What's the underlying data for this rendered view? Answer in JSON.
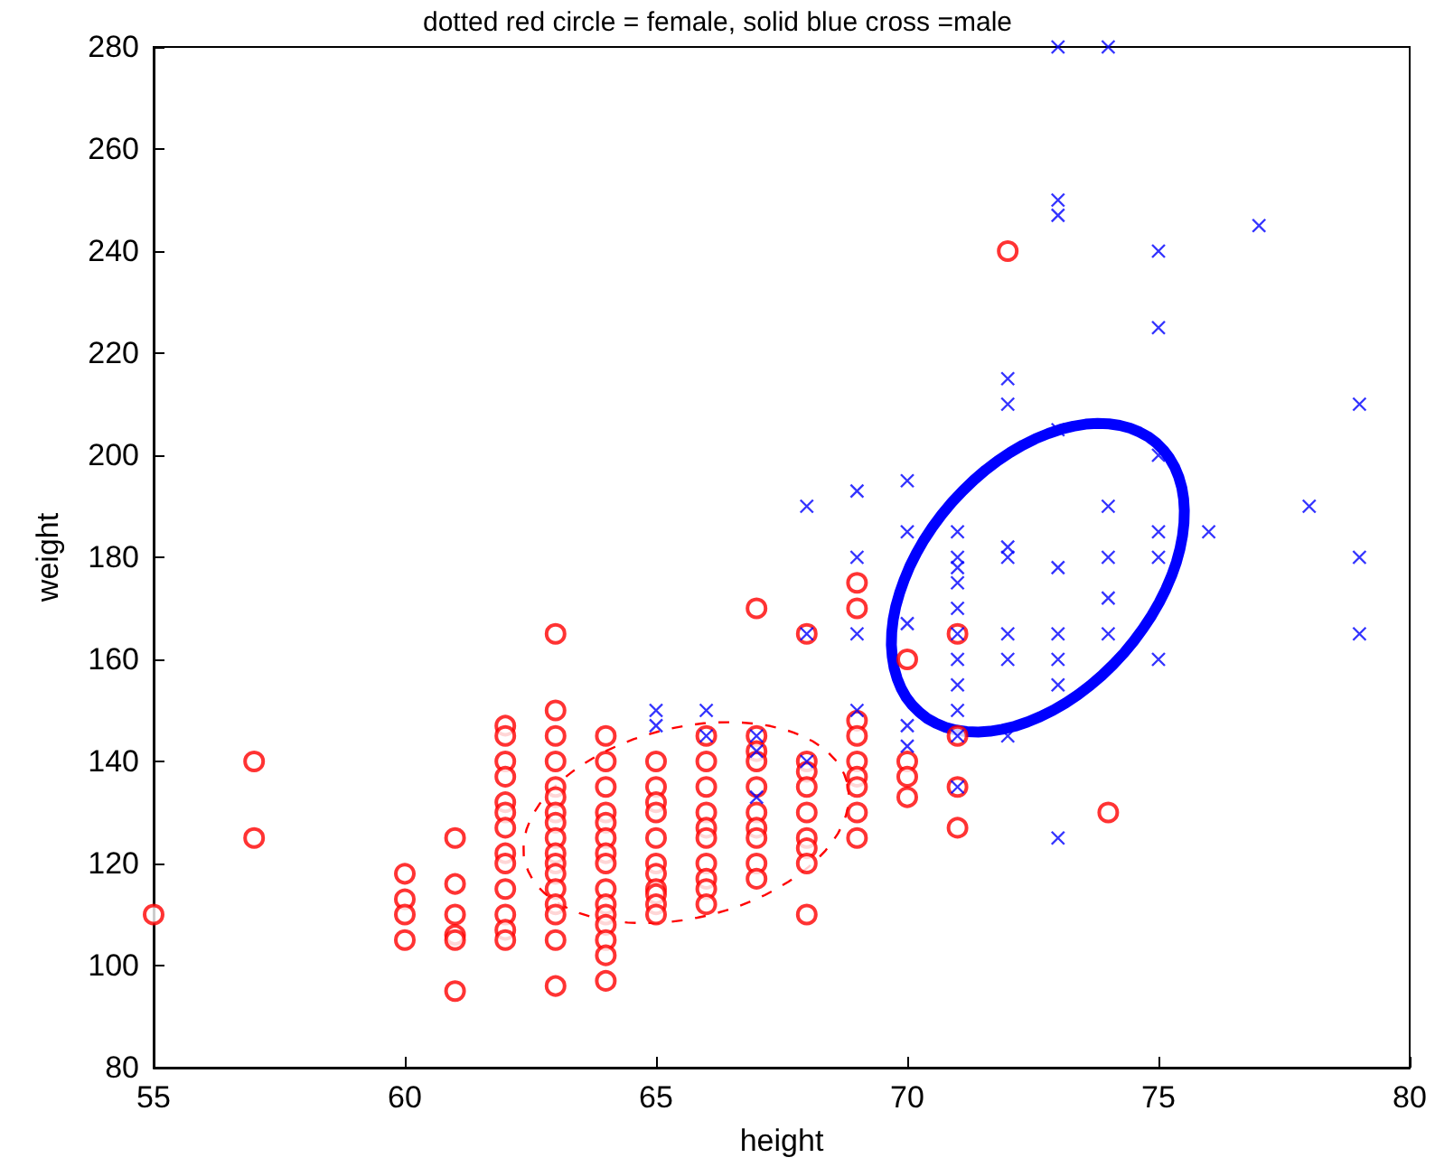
{
  "chart_data": {
    "type": "scatter",
    "title": "dotted red circle = female, solid blue cross =male",
    "xlabel": "height",
    "ylabel": "weight",
    "xlim": [
      55,
      80
    ],
    "xticks": [
      55,
      60,
      65,
      70,
      75,
      80
    ],
    "ylim": [
      80,
      280
    ],
    "yticks": [
      80,
      100,
      120,
      140,
      160,
      180,
      200,
      220,
      240,
      260,
      280
    ],
    "grid": false,
    "series": [
      {
        "marker": "circle",
        "color": "#ff0000",
        "x": [
          55,
          57,
          57,
          60,
          60,
          60,
          60,
          61,
          61,
          61,
          61,
          61,
          61,
          62,
          62,
          62,
          62,
          62,
          62,
          62,
          62,
          62,
          62,
          62,
          62,
          62,
          63,
          63,
          63,
          63,
          63,
          63,
          63,
          63,
          63,
          63,
          63,
          63,
          63,
          63,
          63,
          63,
          63,
          64,
          64,
          64,
          64,
          64,
          64,
          64,
          64,
          64,
          64,
          64,
          64,
          64,
          64,
          64,
          65,
          65,
          65,
          65,
          65,
          65,
          65,
          65,
          65,
          65,
          65,
          66,
          66,
          66,
          66,
          66,
          66,
          66,
          66,
          66,
          66,
          67,
          67,
          67,
          67,
          67,
          67,
          67,
          67,
          67,
          67,
          68,
          68,
          68,
          68,
          68,
          68,
          68,
          68,
          68,
          69,
          69,
          69,
          69,
          69,
          69,
          69,
          69,
          69,
          70,
          70,
          70,
          70,
          71,
          71,
          71,
          71,
          72,
          74
        ],
        "values": [
          110,
          140,
          125,
          118,
          113,
          110,
          105,
          125,
          116,
          110,
          106,
          105,
          95,
          147,
          145,
          140,
          137,
          132,
          130,
          127,
          122,
          120,
          115,
          110,
          107,
          105,
          165,
          150,
          145,
          140,
          135,
          133,
          130,
          128,
          125,
          122,
          120,
          118,
          115,
          112,
          110,
          105,
          96,
          145,
          140,
          135,
          130,
          128,
          125,
          122,
          120,
          115,
          112,
          110,
          108,
          105,
          102,
          97,
          140,
          135,
          132,
          130,
          125,
          120,
          118,
          115,
          114,
          112,
          110,
          145,
          140,
          135,
          130,
          127,
          125,
          120,
          117,
          115,
          112,
          170,
          145,
          142,
          140,
          135,
          130,
          127,
          125,
          120,
          117,
          165,
          140,
          138,
          135,
          130,
          125,
          123,
          120,
          110,
          175,
          170,
          148,
          145,
          140,
          137,
          135,
          130,
          125,
          160,
          140,
          137,
          133,
          165,
          145,
          135,
          127,
          240,
          130
        ]
      },
      {
        "marker": "cross",
        "color": "#0000ff",
        "x": [
          65,
          65,
          66,
          66,
          67,
          67,
          67,
          68,
          68,
          68,
          69,
          69,
          69,
          69,
          70,
          70,
          70,
          70,
          70,
          71,
          71,
          71,
          71,
          71,
          71,
          71,
          71,
          71,
          71,
          71,
          72,
          72,
          72,
          72,
          72,
          72,
          72,
          73,
          73,
          73,
          73,
          73,
          73,
          73,
          73,
          73,
          74,
          74,
          74,
          74,
          74,
          75,
          75,
          75,
          75,
          75,
          75,
          76,
          77,
          78,
          79,
          79,
          79
        ],
        "values": [
          150,
          147,
          150,
          145,
          145,
          142,
          133,
          190,
          165,
          140,
          193,
          180,
          165,
          150,
          195,
          185,
          167,
          147,
          143,
          185,
          180,
          178,
          175,
          170,
          165,
          160,
          155,
          150,
          145,
          135,
          215,
          210,
          182,
          180,
          165,
          160,
          145,
          280,
          250,
          247,
          205,
          178,
          165,
          160,
          155,
          125,
          280,
          190,
          180,
          172,
          165,
          240,
          225,
          200,
          185,
          180,
          160,
          185,
          245,
          190,
          210,
          180,
          165
        ]
      }
    ]
  }
}
